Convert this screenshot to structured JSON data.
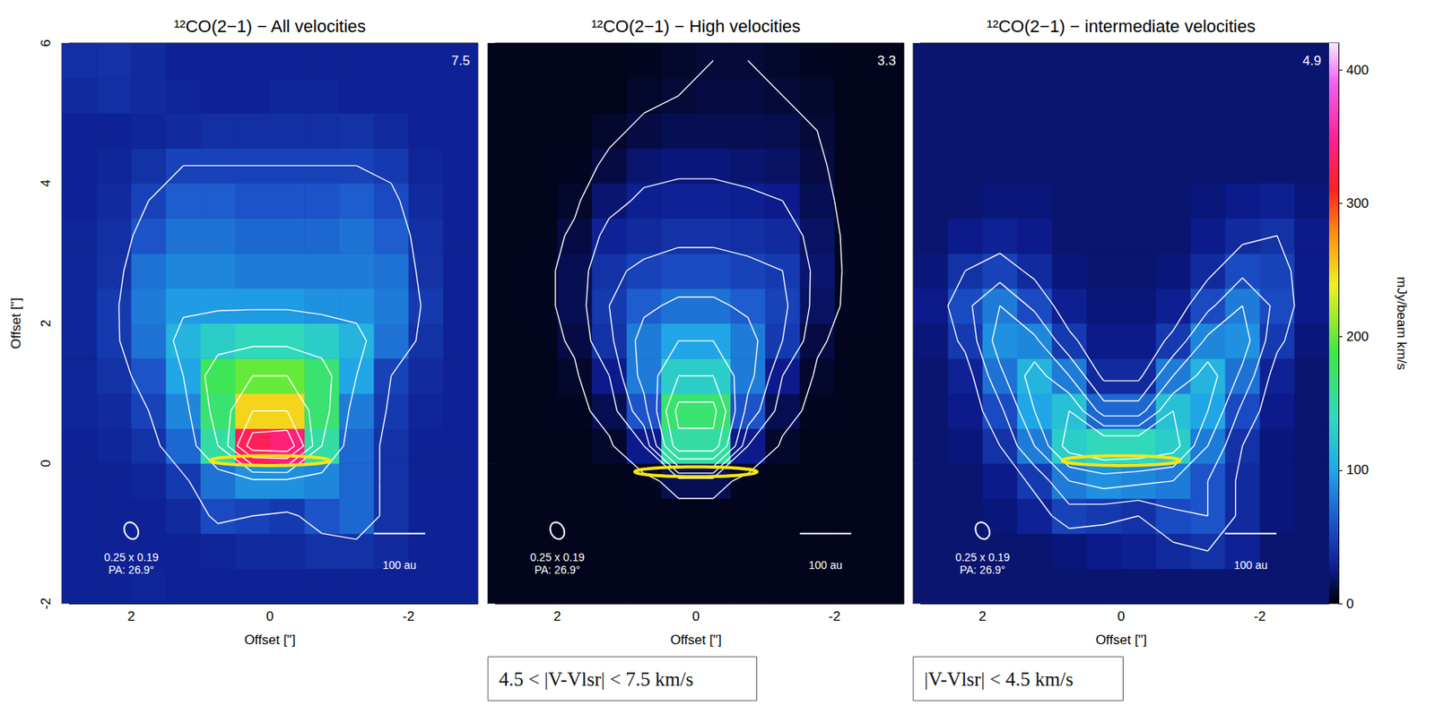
{
  "chart_data": [
    {
      "type": "heatmap",
      "title": "¹²CO(2−1) − All velocities",
      "corner_label": "7.5",
      "xlabel": "Offset [\"]",
      "ylabel": "Offset [\"]",
      "xlim": [
        3,
        -3
      ],
      "ylim": [
        -2,
        6
      ],
      "xticks": [
        2,
        0,
        -2
      ],
      "yticks": [
        -2,
        0,
        2,
        4,
        6
      ],
      "x": [
        2.75,
        2.25,
        1.75,
        1.25,
        0.75,
        0.25,
        -0.25,
        -0.75,
        -1.25,
        -1.75,
        -2.25,
        -2.75
      ],
      "y": [
        -1.75,
        -1.25,
        -0.75,
        -0.25,
        0.25,
        0.75,
        1.25,
        1.75,
        2.25,
        2.75,
        3.25,
        3.75,
        4.25,
        4.75,
        5.25,
        5.75
      ],
      "cells": [
        [
          30,
          30,
          32,
          30,
          30,
          30,
          30,
          30,
          30,
          30,
          30,
          30
        ],
        [
          30,
          30,
          30,
          30,
          32,
          35,
          35,
          40,
          40,
          35,
          30,
          30
        ],
        [
          30,
          30,
          30,
          35,
          55,
          50,
          45,
          60,
          70,
          40,
          30,
          30
        ],
        [
          30,
          30,
          32,
          45,
          75,
          90,
          90,
          85,
          70,
          40,
          30,
          30
        ],
        [
          30,
          32,
          40,
          70,
          150,
          330,
          340,
          150,
          70,
          40,
          30,
          30
        ],
        [
          32,
          35,
          50,
          85,
          170,
          250,
          250,
          170,
          80,
          45,
          32,
          30
        ],
        [
          32,
          40,
          60,
          100,
          180,
          200,
          200,
          170,
          100,
          50,
          35,
          30
        ],
        [
          32,
          45,
          75,
          110,
          130,
          140,
          140,
          130,
          110,
          75,
          40,
          30
        ],
        [
          32,
          45,
          80,
          95,
          95,
          95,
          95,
          90,
          90,
          80,
          45,
          30
        ],
        [
          32,
          40,
          75,
          85,
          85,
          80,
          80,
          80,
          80,
          75,
          40,
          30
        ],
        [
          32,
          38,
          60,
          75,
          75,
          70,
          70,
          70,
          75,
          65,
          38,
          30
        ],
        [
          30,
          35,
          50,
          65,
          65,
          60,
          60,
          60,
          65,
          55,
          35,
          30
        ],
        [
          30,
          32,
          40,
          50,
          50,
          50,
          50,
          50,
          50,
          45,
          32,
          30
        ],
        [
          30,
          30,
          32,
          35,
          38,
          38,
          38,
          38,
          40,
          35,
          30,
          30
        ],
        [
          35,
          38,
          35,
          32,
          30,
          30,
          32,
          32,
          30,
          30,
          30,
          30
        ],
        [
          38,
          40,
          35,
          30,
          30,
          30,
          30,
          30,
          30,
          30,
          30,
          30
        ]
      ],
      "contour_levels": [
        50,
        100,
        150,
        200,
        250,
        300
      ],
      "disk": {
        "center": [
          0,
          0.04
        ],
        "axes": [
          0.86,
          0.07
        ]
      },
      "beam": {
        "label": "0.25 x 0.19",
        "pa_label": "PA: 26.9°",
        "size": [
          0.25,
          0.19
        ],
        "pa": 26.9,
        "center": [
          2,
          -0.96
        ]
      },
      "scale_bar": {
        "label": "100 au",
        "x": [
          -1.5,
          -2.24
        ],
        "y": -1.0
      }
    },
    {
      "type": "heatmap",
      "title": "¹²CO(2−1) − High velocities",
      "corner_label": "3.3",
      "subtitle": "4.5 < |V-Vlsr| < 7.5 km/s",
      "xlabel": "Offset [\"]",
      "tick_labels": "x",
      "xlim": [
        3,
        -3
      ],
      "ylim": [
        -2,
        6
      ],
      "xticks": [
        2,
        0,
        -2
      ],
      "yticks": [
        -2,
        0,
        2,
        4,
        6
      ],
      "x": [
        2.75,
        2.25,
        1.75,
        1.25,
        0.75,
        0.25,
        -0.25,
        -0.75,
        -1.25,
        -1.75,
        -2.25,
        -2.75
      ],
      "y": [
        -1.75,
        -1.25,
        -0.75,
        -0.25,
        0.25,
        0.75,
        1.25,
        1.75,
        2.25,
        2.75,
        3.25,
        3.75,
        4.25,
        4.75,
        5.25,
        5.75
      ],
      "cells": [
        [
          5,
          5,
          5,
          5,
          5,
          5,
          5,
          5,
          5,
          5,
          5,
          5
        ],
        [
          5,
          5,
          5,
          5,
          5,
          5,
          5,
          5,
          5,
          5,
          5,
          5
        ],
        [
          5,
          5,
          5,
          5,
          5,
          5,
          5,
          5,
          5,
          5,
          5,
          5
        ],
        [
          5,
          5,
          5,
          5,
          6,
          15,
          15,
          6,
          5,
          5,
          5,
          5
        ],
        [
          5,
          5,
          5,
          8,
          25,
          150,
          150,
          25,
          8,
          5,
          5,
          5
        ],
        [
          5,
          5,
          6,
          15,
          60,
          170,
          170,
          60,
          15,
          6,
          5,
          5
        ],
        [
          5,
          5,
          8,
          25,
          80,
          130,
          130,
          80,
          25,
          8,
          5,
          5
        ],
        [
          5,
          5,
          12,
          40,
          80,
          100,
          100,
          80,
          45,
          12,
          5,
          5
        ],
        [
          5,
          6,
          15,
          45,
          65,
          75,
          75,
          65,
          50,
          18,
          6,
          5
        ],
        [
          5,
          6,
          15,
          40,
          50,
          55,
          55,
          50,
          45,
          20,
          6,
          5
        ],
        [
          5,
          5,
          12,
          30,
          35,
          40,
          40,
          38,
          35,
          18,
          6,
          5
        ],
        [
          5,
          5,
          8,
          20,
          28,
          30,
          30,
          28,
          25,
          15,
          5,
          5
        ],
        [
          5,
          5,
          6,
          12,
          20,
          22,
          22,
          20,
          18,
          12,
          5,
          5
        ],
        [
          5,
          5,
          5,
          8,
          12,
          15,
          15,
          15,
          14,
          10,
          5,
          5
        ],
        [
          5,
          5,
          5,
          5,
          8,
          10,
          12,
          12,
          10,
          8,
          5,
          5
        ],
        [
          5,
          5,
          5,
          5,
          6,
          8,
          10,
          10,
          8,
          6,
          5,
          5
        ]
      ],
      "contour_levels": [
        10,
        25,
        45,
        70,
        100,
        130,
        160
      ],
      "disk": {
        "center": [
          0,
          -0.12
        ],
        "axes": [
          0.88,
          0.07
        ]
      },
      "beam": {
        "label": "0.25 x 0.19",
        "pa_label": "PA: 26.9°",
        "size": [
          0.25,
          0.19
        ],
        "pa": 26.9,
        "center": [
          2,
          -0.96
        ]
      },
      "scale_bar": {
        "label": "100 au",
        "x": [
          -1.5,
          -2.24
        ],
        "y": -1.0
      }
    },
    {
      "type": "heatmap",
      "title": "¹²CO(2−1) − intermediate velocities",
      "corner_label": "4.9",
      "subtitle": "|V-Vlsr| < 4.5 km/s",
      "xlabel": "Offset [\"]",
      "tick_labels": "x",
      "xlim": [
        3,
        -3
      ],
      "ylim": [
        -2,
        6
      ],
      "xticks": [
        2,
        0,
        -2
      ],
      "yticks": [
        -2,
        0,
        2,
        4,
        6
      ],
      "x": [
        2.75,
        2.25,
        1.75,
        1.25,
        0.75,
        0.25,
        -0.25,
        -0.75,
        -1.25,
        -1.75,
        -2.25,
        -2.75
      ],
      "y": [
        -1.75,
        -1.25,
        -0.75,
        -0.25,
        0.25,
        0.75,
        1.25,
        1.75,
        2.25,
        2.75,
        3.25,
        3.75,
        4.25,
        4.75,
        5.25,
        5.75
      ],
      "cells": [
        [
          20,
          20,
          20,
          20,
          20,
          20,
          20,
          20,
          20,
          20,
          20,
          20
        ],
        [
          20,
          20,
          20,
          20,
          22,
          25,
          28,
          35,
          40,
          30,
          20,
          20
        ],
        [
          20,
          20,
          22,
          30,
          50,
          45,
          40,
          55,
          60,
          35,
          22,
          20
        ],
        [
          20,
          20,
          25,
          45,
          80,
          90,
          85,
          80,
          60,
          35,
          22,
          20
        ],
        [
          20,
          22,
          40,
          80,
          130,
          140,
          140,
          130,
          80,
          40,
          22,
          20
        ],
        [
          20,
          25,
          55,
          100,
          120,
          70,
          70,
          120,
          100,
          55,
          25,
          20
        ],
        [
          20,
          30,
          75,
          110,
          80,
          35,
          35,
          80,
          110,
          75,
          30,
          20
        ],
        [
          22,
          45,
          90,
          85,
          45,
          25,
          25,
          45,
          85,
          90,
          45,
          22
        ],
        [
          25,
          55,
          80,
          55,
          28,
          22,
          22,
          28,
          55,
          80,
          55,
          25
        ],
        [
          22,
          40,
          50,
          35,
          22,
          20,
          20,
          22,
          35,
          55,
          50,
          25
        ],
        [
          20,
          25,
          30,
          25,
          20,
          20,
          20,
          20,
          25,
          35,
          40,
          25
        ],
        [
          20,
          20,
          22,
          22,
          20,
          20,
          20,
          20,
          22,
          25,
          28,
          22
        ],
        [
          20,
          20,
          20,
          20,
          20,
          20,
          20,
          20,
          20,
          20,
          20,
          20
        ],
        [
          20,
          20,
          20,
          20,
          20,
          20,
          20,
          20,
          20,
          20,
          20,
          20
        ],
        [
          20,
          20,
          20,
          20,
          20,
          20,
          20,
          20,
          20,
          20,
          20,
          20
        ],
        [
          20,
          20,
          20,
          20,
          20,
          20,
          20,
          20,
          20,
          20,
          20,
          20
        ]
      ],
      "contour_levels": [
        40,
        60,
        80,
        100,
        120
      ],
      "disk": {
        "center": [
          0,
          0.04
        ],
        "axes": [
          0.85,
          0.07
        ]
      },
      "beam": {
        "label": "0.25 x 0.19",
        "pa_label": "PA: 26.9°",
        "size": [
          0.25,
          0.19
        ],
        "pa": 26.9,
        "center": [
          2,
          -0.96
        ]
      },
      "scale_bar": {
        "label": "100 au",
        "x": [
          -1.5,
          -2.24
        ],
        "y": -1.0
      },
      "colorbar": {
        "label": "mJy/beam km/s",
        "clim": [
          0,
          420
        ],
        "cticks": [
          0,
          100,
          200,
          300,
          400
        ]
      }
    }
  ]
}
